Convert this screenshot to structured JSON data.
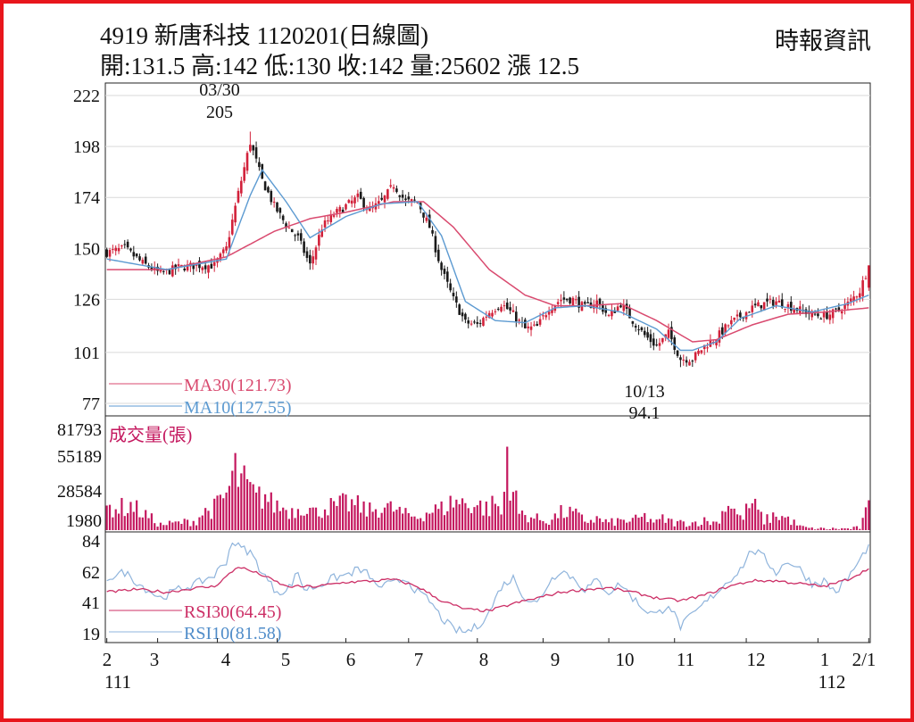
{
  "header": {
    "title": "4919  新唐科技 1120201(日線圖)",
    "source": "時報資訊",
    "ohlc": "開:131.5 高:142 低:130 收:142 量:25602 漲 12.5"
  },
  "colors": {
    "frame": "#e8161c",
    "candle_up": "#d2213a",
    "candle_down": "#1a1a1a",
    "ma30": "#d94a6f",
    "ma10": "#5c9ad1",
    "volume": "#c4175e",
    "rsi30": "#cc2f66",
    "rsi10": "#8fb4dc",
    "grid": "#d9d9d9"
  },
  "chart_data": [
    {
      "type": "candlestick",
      "panel": "price",
      "yticks": [
        222,
        198,
        174,
        150,
        126,
        101,
        77
      ],
      "ylim": [
        77,
        222
      ],
      "xticks": [
        "2",
        "3",
        "4",
        "5",
        "6",
        "7",
        "8",
        "9",
        "10",
        "11",
        "12",
        "1",
        "2/1"
      ],
      "year_labels": [
        "111",
        "112"
      ],
      "annotations": [
        {
          "label": "03/30",
          "value": "205"
        },
        {
          "label": "10/13",
          "value": "94.1"
        }
      ],
      "legend": [
        {
          "name": "MA30",
          "text": "MA30(121.73)"
        },
        {
          "name": "MA10",
          "text": "MA10(127.55)"
        }
      ],
      "close_anchors": [
        [
          0,
          148
        ],
        [
          6,
          150
        ],
        [
          12,
          143
        ],
        [
          18,
          138
        ],
        [
          24,
          141
        ],
        [
          30,
          142
        ],
        [
          36,
          142
        ],
        [
          40,
          150
        ],
        [
          44,
          176
        ],
        [
          48,
          200
        ],
        [
          52,
          182
        ],
        [
          56,
          170
        ],
        [
          60,
          161
        ],
        [
          64,
          155
        ],
        [
          68,
          142
        ],
        [
          72,
          160
        ],
        [
          76,
          166
        ],
        [
          80,
          170
        ],
        [
          84,
          174
        ],
        [
          88,
          168
        ],
        [
          92,
          172
        ],
        [
          96,
          180
        ],
        [
          100,
          172
        ],
        [
          104,
          172
        ],
        [
          108,
          160
        ],
        [
          112,
          140
        ],
        [
          116,
          126
        ],
        [
          120,
          115
        ],
        [
          124,
          114
        ],
        [
          128,
          120
        ],
        [
          132,
          124
        ],
        [
          136,
          119
        ],
        [
          140,
          112
        ],
        [
          144,
          113
        ],
        [
          148,
          122
        ],
        [
          152,
          126
        ],
        [
          156,
          126
        ],
        [
          160,
          122
        ],
        [
          164,
          125
        ],
        [
          168,
          118
        ],
        [
          172,
          124
        ],
        [
          176,
          116
        ],
        [
          180,
          109
        ],
        [
          184,
          104
        ],
        [
          188,
          110
        ],
        [
          192,
          98
        ],
        [
          196,
          98
        ],
        [
          200,
          104
        ],
        [
          204,
          108
        ],
        [
          208,
          114
        ],
        [
          212,
          118
        ],
        [
          216,
          122
        ],
        [
          220,
          124
        ],
        [
          224,
          125
        ],
        [
          228,
          123
        ],
        [
          232,
          121
        ],
        [
          236,
          119
        ],
        [
          240,
          118
        ],
        [
          244,
          120
        ],
        [
          248,
          124
        ],
        [
          252,
          130
        ],
        [
          255,
          142
        ]
      ],
      "ma30_anchors": [
        [
          0,
          140
        ],
        [
          20,
          140
        ],
        [
          40,
          146
        ],
        [
          56,
          158
        ],
        [
          68,
          164
        ],
        [
          80,
          167
        ],
        [
          96,
          172
        ],
        [
          106,
          172
        ],
        [
          116,
          160
        ],
        [
          128,
          140
        ],
        [
          140,
          128
        ],
        [
          150,
          123
        ],
        [
          160,
          123
        ],
        [
          172,
          124
        ],
        [
          184,
          116
        ],
        [
          196,
          106
        ],
        [
          204,
          107
        ],
        [
          216,
          114
        ],
        [
          228,
          119
        ],
        [
          240,
          120
        ],
        [
          255,
          122
        ]
      ],
      "ma10_anchors": [
        [
          0,
          145
        ],
        [
          20,
          140
        ],
        [
          40,
          145
        ],
        [
          48,
          175
        ],
        [
          52,
          187
        ],
        [
          60,
          172
        ],
        [
          68,
          155
        ],
        [
          80,
          165
        ],
        [
          92,
          171
        ],
        [
          104,
          172
        ],
        [
          112,
          156
        ],
        [
          120,
          125
        ],
        [
          130,
          116
        ],
        [
          140,
          115
        ],
        [
          150,
          122
        ],
        [
          160,
          123
        ],
        [
          172,
          120
        ],
        [
          184,
          112
        ],
        [
          192,
          102
        ],
        [
          196,
          102
        ],
        [
          204,
          106
        ],
        [
          212,
          117
        ],
        [
          224,
          123
        ],
        [
          236,
          120
        ],
        [
          248,
          124
        ],
        [
          255,
          128
        ]
      ]
    },
    {
      "type": "bar",
      "panel": "volume",
      "title": "成交量(張)",
      "yticks": [
        81793,
        55189,
        28584,
        1980
      ],
      "ylim": [
        1980,
        81793
      ],
      "count": 256,
      "peaks": [
        [
          8,
          28000
        ],
        [
          18,
          8000
        ],
        [
          30,
          12000
        ],
        [
          32,
          20000
        ],
        [
          36,
          25000
        ],
        [
          40,
          38000
        ],
        [
          43,
          63000
        ],
        [
          44,
          55000
        ],
        [
          46,
          50000
        ],
        [
          48,
          43000
        ],
        [
          50,
          35000
        ],
        [
          53,
          38000
        ],
        [
          55,
          30000
        ],
        [
          58,
          26000
        ],
        [
          62,
          22000
        ],
        [
          66,
          28000
        ],
        [
          70,
          20000
        ],
        [
          74,
          28000
        ],
        [
          76,
          25000
        ],
        [
          80,
          30000
        ],
        [
          84,
          27000
        ],
        [
          88,
          22000
        ],
        [
          92,
          26000
        ],
        [
          96,
          24000
        ],
        [
          100,
          18000
        ],
        [
          104,
          16000
        ],
        [
          108,
          22000
        ],
        [
          112,
          24000
        ],
        [
          116,
          32000
        ],
        [
          120,
          30000
        ],
        [
          124,
          28000
        ],
        [
          128,
          24000
        ],
        [
          130,
          32000
        ],
        [
          132,
          18000
        ],
        [
          134,
          68000
        ],
        [
          138,
          20000
        ],
        [
          144,
          14000
        ],
        [
          148,
          12000
        ],
        [
          152,
          20000
        ],
        [
          156,
          20000
        ],
        [
          160,
          12000
        ],
        [
          164,
          14000
        ],
        [
          168,
          10000
        ],
        [
          172,
          12000
        ],
        [
          176,
          12000
        ],
        [
          180,
          16000
        ],
        [
          184,
          10000
        ],
        [
          186,
          14000
        ],
        [
          190,
          10000
        ],
        [
          196,
          10000
        ],
        [
          200,
          12000
        ],
        [
          204,
          10000
        ],
        [
          208,
          32000
        ],
        [
          212,
          14000
        ],
        [
          216,
          30000
        ],
        [
          220,
          12000
        ],
        [
          224,
          18000
        ],
        [
          228,
          14000
        ],
        [
          232,
          6000
        ],
        [
          236,
          4000
        ],
        [
          240,
          4000
        ],
        [
          244,
          4000
        ],
        [
          248,
          4000
        ],
        [
          252,
          5000
        ],
        [
          255,
          25602
        ]
      ]
    },
    {
      "type": "line",
      "panel": "rsi",
      "yticks": [
        84,
        62,
        41,
        19
      ],
      "ylim": [
        19,
        84
      ],
      "legend": [
        {
          "name": "RSI30",
          "text": "RSI30(64.45)"
        },
        {
          "name": "RSI10",
          "text": "RSI10(81.58)"
        }
      ],
      "rsi30_anchors": [
        [
          0,
          48
        ],
        [
          10,
          50
        ],
        [
          20,
          48
        ],
        [
          30,
          51
        ],
        [
          36,
          52
        ],
        [
          44,
          66
        ],
        [
          52,
          60
        ],
        [
          60,
          52
        ],
        [
          70,
          52
        ],
        [
          80,
          55
        ],
        [
          90,
          56
        ],
        [
          96,
          57
        ],
        [
          104,
          52
        ],
        [
          112,
          42
        ],
        [
          120,
          36
        ],
        [
          128,
          35
        ],
        [
          136,
          40
        ],
        [
          144,
          44
        ],
        [
          152,
          48
        ],
        [
          160,
          50
        ],
        [
          168,
          51
        ],
        [
          176,
          48
        ],
        [
          184,
          44
        ],
        [
          192,
          42
        ],
        [
          200,
          46
        ],
        [
          208,
          52
        ],
        [
          216,
          56
        ],
        [
          224,
          56
        ],
        [
          232,
          54
        ],
        [
          240,
          52
        ],
        [
          248,
          57
        ],
        [
          255,
          64.45
        ]
      ],
      "rsi10_anchors": [
        [
          0,
          58
        ],
        [
          6,
          62
        ],
        [
          12,
          52
        ],
        [
          18,
          44
        ],
        [
          24,
          50
        ],
        [
          30,
          54
        ],
        [
          36,
          60
        ],
        [
          40,
          70
        ],
        [
          42,
          84
        ],
        [
          44,
          80
        ],
        [
          48,
          76
        ],
        [
          52,
          62
        ],
        [
          56,
          50
        ],
        [
          60,
          48
        ],
        [
          64,
          62
        ],
        [
          66,
          50
        ],
        [
          70,
          52
        ],
        [
          76,
          58
        ],
        [
          80,
          60
        ],
        [
          84,
          64
        ],
        [
          88,
          60
        ],
        [
          90,
          52
        ],
        [
          96,
          54
        ],
        [
          100,
          58
        ],
        [
          104,
          48
        ],
        [
          108,
          42
        ],
        [
          112,
          30
        ],
        [
          116,
          22
        ],
        [
          120,
          20
        ],
        [
          124,
          24
        ],
        [
          128,
          34
        ],
        [
          132,
          52
        ],
        [
          136,
          58
        ],
        [
          140,
          44
        ],
        [
          144,
          40
        ],
        [
          148,
          55
        ],
        [
          152,
          64
        ],
        [
          156,
          58
        ],
        [
          160,
          50
        ],
        [
          164,
          56
        ],
        [
          168,
          48
        ],
        [
          172,
          54
        ],
        [
          176,
          44
        ],
        [
          180,
          36
        ],
        [
          184,
          32
        ],
        [
          188,
          40
        ],
        [
          192,
          24
        ],
        [
          196,
          32
        ],
        [
          200,
          40
        ],
        [
          204,
          48
        ],
        [
          208,
          56
        ],
        [
          212,
          64
        ],
        [
          216,
          78
        ],
        [
          220,
          72
        ],
        [
          224,
          62
        ],
        [
          228,
          70
        ],
        [
          232,
          64
        ],
        [
          236,
          54
        ],
        [
          240,
          56
        ],
        [
          244,
          48
        ],
        [
          248,
          58
        ],
        [
          252,
          70
        ],
        [
          255,
          81.58
        ]
      ]
    }
  ]
}
